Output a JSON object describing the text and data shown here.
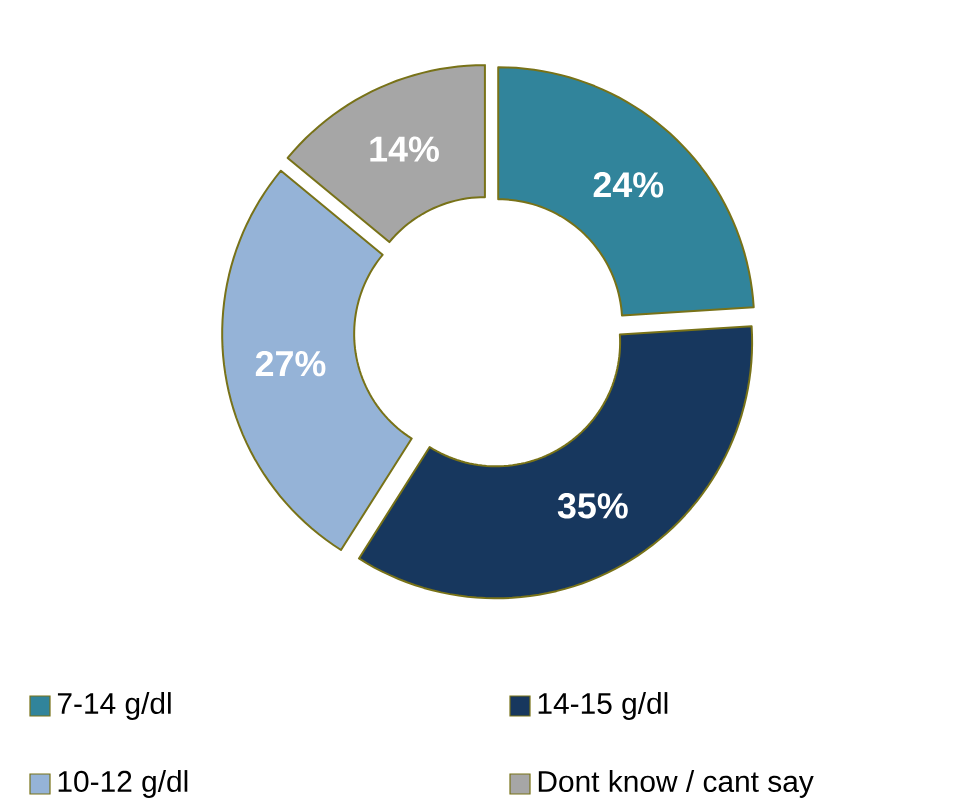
{
  "chart_data": {
    "type": "donut",
    "categories": [
      "7-14 g/dl",
      "14-15 g/dl",
      "10-12 g/dl",
      "Dont know / cant  say"
    ],
    "values": [
      24,
      35,
      27,
      14
    ],
    "value_labels": [
      "24%",
      "35%",
      "27%",
      "14%"
    ],
    "colors": [
      "#31849b",
      "#17375e",
      "#95b3d7",
      "#a6a6a6"
    ],
    "legend": "bottom"
  }
}
